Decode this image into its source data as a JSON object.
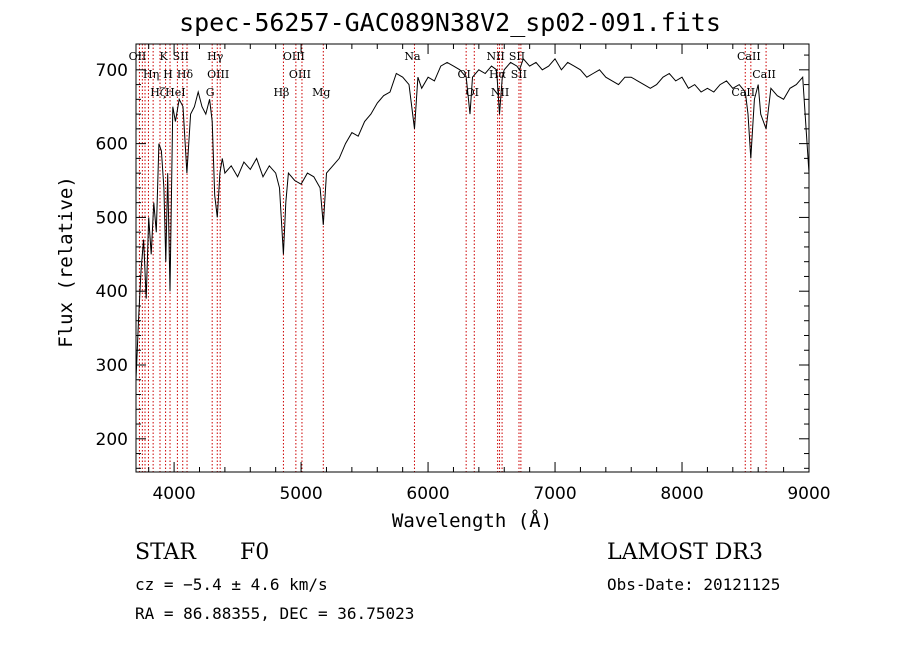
{
  "chart_data": {
    "type": "line",
    "title": "spec-56257-GAC089N38V2_sp02-091.fits",
    "xlabel": "Wavelength (Å)",
    "ylabel": "Flux (relative)",
    "xlim": [
      3700,
      9000
    ],
    "ylim": [
      155,
      735
    ],
    "xticks": [
      4000,
      5000,
      6000,
      7000,
      8000,
      9000
    ],
    "yticks": [
      200,
      300,
      400,
      500,
      600,
      700
    ],
    "grid": false,
    "series": [
      {
        "x": [
          3700,
          3720,
          3740,
          3760,
          3780,
          3800,
          3820,
          3840,
          3860,
          3880,
          3900,
          3920,
          3935,
          3950,
          3968,
          3990,
          4010,
          4040,
          4070,
          4101,
          4130,
          4160,
          4190,
          4220,
          4250,
          4280,
          4300,
          4320,
          4340,
          4361,
          4380,
          4400,
          4450,
          4500,
          4550,
          4600,
          4650,
          4700,
          4750,
          4800,
          4830,
          4861,
          4880,
          4900,
          4950,
          5000,
          5050,
          5100,
          5150,
          5175,
          5200,
          5250,
          5300,
          5350,
          5400,
          5450,
          5500,
          5550,
          5600,
          5650,
          5700,
          5750,
          5800,
          5850,
          5893,
          5920,
          5950,
          6000,
          6050,
          6100,
          6150,
          6200,
          6250,
          6300,
          6330,
          6350,
          6400,
          6450,
          6500,
          6540,
          6563,
          6585,
          6600,
          6650,
          6700,
          6720,
          6750,
          6800,
          6850,
          6900,
          6950,
          7000,
          7050,
          7100,
          7150,
          7200,
          7250,
          7300,
          7350,
          7400,
          7450,
          7500,
          7550,
          7600,
          7650,
          7700,
          7750,
          7800,
          7850,
          7900,
          7950,
          8000,
          8050,
          8100,
          8150,
          8200,
          8250,
          8300,
          8350,
          8400,
          8450,
          8498,
          8520,
          8542,
          8570,
          8600,
          8620,
          8662,
          8700,
          8750,
          8800,
          8850,
          8900,
          8950,
          9000
        ],
        "y": [
          280,
          360,
          430,
          470,
          390,
          500,
          450,
          520,
          480,
          600,
          590,
          540,
          440,
          560,
          400,
          650,
          630,
          660,
          650,
          560,
          640,
          650,
          670,
          650,
          640,
          660,
          630,
          530,
          500,
          560,
          580,
          560,
          570,
          555,
          575,
          565,
          580,
          555,
          570,
          560,
          540,
          450,
          520,
          560,
          550,
          545,
          560,
          555,
          540,
          490,
          560,
          570,
          580,
          600,
          615,
          610,
          630,
          640,
          655,
          665,
          670,
          695,
          690,
          680,
          620,
          690,
          675,
          690,
          685,
          705,
          710,
          705,
          700,
          690,
          640,
          690,
          700,
          695,
          705,
          700,
          640,
          690,
          700,
          710,
          705,
          700,
          715,
          705,
          710,
          700,
          705,
          715,
          700,
          710,
          705,
          700,
          690,
          695,
          700,
          690,
          685,
          680,
          690,
          690,
          685,
          680,
          675,
          680,
          690,
          695,
          685,
          690,
          675,
          680,
          670,
          675,
          670,
          680,
          685,
          675,
          680,
          670,
          640,
          580,
          660,
          680,
          640,
          620,
          675,
          665,
          660,
          675,
          680,
          690,
          560
        ]
      }
    ],
    "lines": [
      {
        "x": 3727,
        "label": "OII"
      },
      {
        "x": 3750,
        "label": ""
      },
      {
        "x": 3771,
        "label": ""
      },
      {
        "x": 3798,
        "label": ""
      },
      {
        "x": 3835,
        "label": "Hη"
      },
      {
        "x": 3889,
        "label": "Hζ"
      },
      {
        "x": 3933,
        "label": "K"
      },
      {
        "x": 3968,
        "label": "H"
      },
      {
        "x": 4026,
        "label": "HeI"
      },
      {
        "x": 4068,
        "label": "SII"
      },
      {
        "x": 4102,
        "label": "Hδ"
      },
      {
        "x": 4300,
        "label": "G"
      },
      {
        "x": 4340,
        "label": "Hγ"
      },
      {
        "x": 4363,
        "label": "OIII"
      },
      {
        "x": 4861,
        "label": "Hβ"
      },
      {
        "x": 4959,
        "label": "OIII"
      },
      {
        "x": 5007,
        "label": "OIII"
      },
      {
        "x": 5175,
        "label": "Mg"
      },
      {
        "x": 5893,
        "label": "Na"
      },
      {
        "x": 6300,
        "label": "OI"
      },
      {
        "x": 6364,
        "label": "OI"
      },
      {
        "x": 6548,
        "label": "NII"
      },
      {
        "x": 6563,
        "label": "Hα"
      },
      {
        "x": 6583,
        "label": "NII"
      },
      {
        "x": 6716,
        "label": "SII"
      },
      {
        "x": 6731,
        "label": "SII"
      },
      {
        "x": 8498,
        "label": "CaII"
      },
      {
        "x": 8542,
        "label": "CaII"
      },
      {
        "x": 8662,
        "label": "CaII"
      }
    ],
    "colors": {
      "spectrum": "#000000",
      "lines": "#cc0000",
      "axes": "#000000"
    }
  },
  "info": {
    "object": "STAR",
    "subclass": "F0",
    "survey": "LAMOST DR3",
    "cz": "cz = −5.4 ± 4.6 km/s",
    "obsdate": "Obs-Date: 20121125",
    "radec": "RA =  86.88355, DEC =  36.75023"
  }
}
